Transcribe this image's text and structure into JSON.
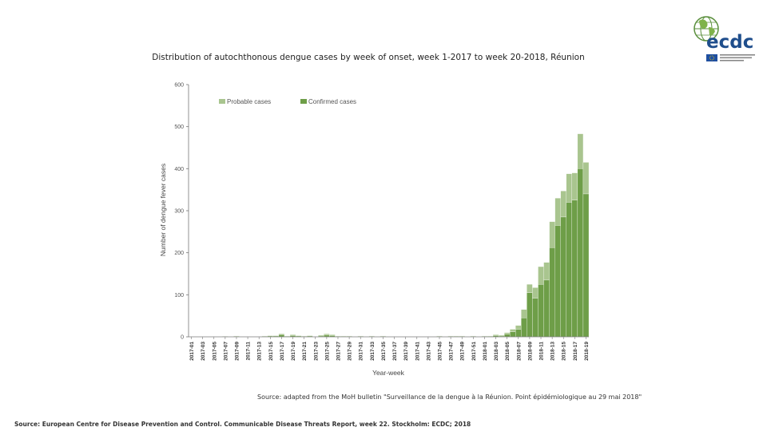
{
  "page": {
    "title": "Distribution of autochthonous dengue cases by week of onset, week 1-2017 to week 20-2018, Réunion",
    "chart_source": "Source: adapted from the MoH bulletin \"Surveillance de la dengue à la Réunion. Point épidémiologique au 29 mai 2018\"",
    "page_source": "Source: European Centre for Disease Prevention and Control. Communicable Disease Threats Report, week 22. Stockholm: ECDC; 2018"
  },
  "logo": {
    "text": "ecdc"
  },
  "colors": {
    "probable": "#a9c58f",
    "confirmed": "#6e9e48",
    "axis": "#777777"
  },
  "chart_data": {
    "type": "bar",
    "stacked": true,
    "xlabel": "Year-week",
    "ylabel": "Number of dengue fever cases",
    "ylim": [
      0,
      600
    ],
    "yticks": [
      0,
      100,
      200,
      300,
      400,
      500,
      600
    ],
    "legend": {
      "position": "top"
    },
    "categories": [
      "2017-01",
      "2017-02",
      "2017-03",
      "2017-04",
      "2017-05",
      "2017-06",
      "2017-07",
      "2017-08",
      "2017-09",
      "2017-10",
      "2017-11",
      "2017-12",
      "2017-13",
      "2017-14",
      "2017-15",
      "2017-16",
      "2017-17",
      "2017-18",
      "2017-19",
      "2017-20",
      "2017-21",
      "2017-22",
      "2017-23",
      "2017-24",
      "2017-25",
      "2017-26",
      "2017-27",
      "2017-28",
      "2017-29",
      "2017-30",
      "2017-31",
      "2017-32",
      "2017-33",
      "2017-34",
      "2017-35",
      "2017-36",
      "2017-37",
      "2017-38",
      "2017-39",
      "2017-40",
      "2017-41",
      "2017-42",
      "2017-43",
      "2017-44",
      "2017-45",
      "2017-46",
      "2017-47",
      "2017-48",
      "2017-49",
      "2017-50",
      "2017-51",
      "2017-52",
      "2018-01",
      "2018-02",
      "2018-03",
      "2018-04",
      "2018-05",
      "2018-06",
      "2018-07",
      "2018-08",
      "2018-09",
      "2018-10",
      "2018-11",
      "2018-12",
      "2018-13",
      "2018-14",
      "2018-15",
      "2018-16",
      "2018-17",
      "2018-18",
      "2018-19"
    ],
    "tick_labels": [
      "2017-01",
      "2017-03",
      "2017-05",
      "2017-07",
      "2017-09",
      "2017-11",
      "2017-13",
      "2017-15",
      "2017-17",
      "2017-19",
      "2017-21",
      "2017-23",
      "2017-25",
      "2017-27",
      "2017-29",
      "2017-31",
      "2017-33",
      "2017-35",
      "2017-37",
      "2017-39",
      "2017-41",
      "2017-43",
      "2017-45",
      "2017-47",
      "2017-49",
      "2017-51",
      "2018-01",
      "2018-03",
      "2018-05",
      "2018-07",
      "2018-09",
      "2018-11",
      "2018-13",
      "2018-15",
      "2018-17",
      "2018-19"
    ],
    "series": [
      {
        "name": "Confirmed cases",
        "values": [
          0,
          0,
          0,
          0,
          0,
          0,
          1,
          0,
          1,
          0,
          0,
          0,
          0,
          1,
          2,
          2,
          5,
          1,
          3,
          2,
          1,
          2,
          0,
          2,
          4,
          3,
          1,
          1,
          1,
          0,
          1,
          0,
          1,
          0,
          1,
          0,
          0,
          0,
          0,
          0,
          0,
          0,
          0,
          0,
          1,
          0,
          1,
          1,
          1,
          0,
          1,
          0,
          1,
          1,
          3,
          2,
          6,
          12,
          18,
          45,
          105,
          92,
          125,
          135,
          212,
          265,
          285,
          320,
          325,
          400,
          340
        ]
      },
      {
        "name": "Probable cases",
        "values": [
          0,
          0,
          0,
          0,
          0,
          0,
          0,
          0,
          1,
          0,
          0,
          0,
          0,
          1,
          1,
          1,
          2,
          1,
          2,
          1,
          1,
          1,
          0,
          2,
          3,
          2,
          1,
          1,
          1,
          0,
          1,
          0,
          1,
          0,
          1,
          0,
          0,
          0,
          0,
          0,
          0,
          0,
          0,
          0,
          1,
          0,
          1,
          1,
          1,
          0,
          1,
          0,
          1,
          1,
          2,
          2,
          4,
          6,
          9,
          20,
          20,
          25,
          42,
          42,
          62,
          65,
          62,
          68,
          65,
          83,
          75
        ]
      }
    ]
  }
}
